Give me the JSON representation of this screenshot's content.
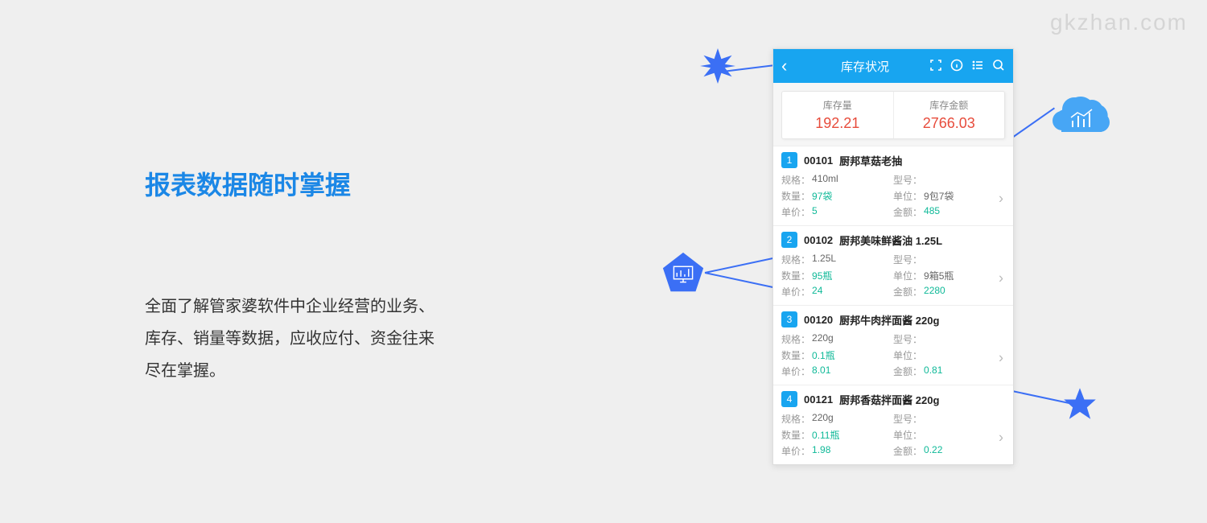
{
  "watermark": "gkzhan.com",
  "left": {
    "title": "报表数据随时掌握",
    "desc1": "全面了解管家婆软件中企业经营的业务、",
    "desc2": "库存、销量等数据，应收应付、资金往来",
    "desc3": "尽在掌握。"
  },
  "phone": {
    "title": "库存状况",
    "summary": {
      "qty_label": "库存量",
      "qty_value": "192.21",
      "amt_label": "库存金额",
      "amt_value": "2766.03"
    },
    "labels": {
      "spec": "规格：",
      "model": "型号：",
      "qty": "数量：",
      "unit": "单位：",
      "price": "单价：",
      "amount": "金额："
    },
    "items": [
      {
        "idx": "1",
        "code": "00101",
        "name": "厨邦草菇老抽",
        "spec": "410ml",
        "model": "",
        "qty": "97袋",
        "unit": "9包7袋",
        "price": "5",
        "amount": "485"
      },
      {
        "idx": "2",
        "code": "00102",
        "name": "厨邦美味鲜酱油 1.25L",
        "spec": "1.25L",
        "model": "",
        "qty": "95瓶",
        "unit": "9箱5瓶",
        "price": "24",
        "amount": "2280"
      },
      {
        "idx": "3",
        "code": "00120",
        "name": "厨邦牛肉拌面酱 220g",
        "spec": "220g",
        "model": "",
        "qty": "0.1瓶",
        "unit": "",
        "price": "8.01",
        "amount": "0.81"
      },
      {
        "idx": "4",
        "code": "00121",
        "name": "厨邦香菇拌面酱 220g",
        "spec": "220g",
        "model": "",
        "qty": "0.11瓶",
        "unit": "",
        "price": "1.98",
        "amount": "0.22"
      }
    ]
  },
  "colors": {
    "blue": "#3b6ff5",
    "header": "#18a5f0",
    "red": "#e74c3c",
    "teal": "#0fb998"
  }
}
